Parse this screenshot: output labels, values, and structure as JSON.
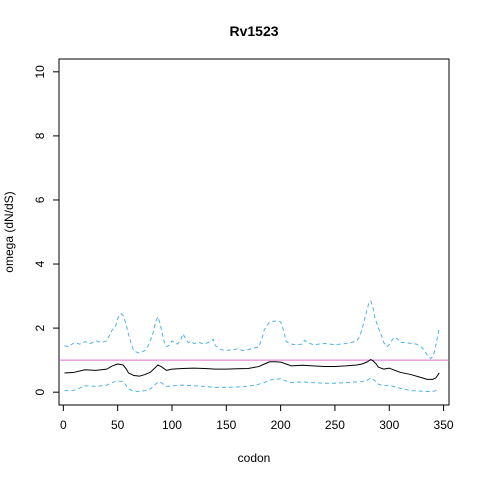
{
  "chart_data": {
    "type": "line",
    "title": "Rv1523",
    "xlabel": "codon",
    "ylabel": "omega (dN/dS)",
    "xlim": [
      -4,
      355
    ],
    "ylim": [
      -0.4,
      10.4
    ],
    "x_ticks": [
      0,
      50,
      100,
      150,
      200,
      250,
      300,
      350
    ],
    "y_ticks": [
      0,
      2,
      4,
      6,
      8,
      10
    ],
    "grid": false,
    "legend": "none",
    "reference_line": {
      "y": 1,
      "color": "#DA70D6"
    },
    "series": [
      {
        "role": "upper",
        "style": "dashed",
        "color": "#4FB3E8",
        "x": [
          1,
          5,
          10,
          15,
          20,
          25,
          30,
          35,
          40,
          45,
          48,
          50,
          53,
          55,
          58,
          60,
          63,
          65,
          70,
          75,
          78,
          80,
          83,
          85,
          87,
          89,
          91,
          93,
          95,
          98,
          100,
          103,
          105,
          108,
          110,
          113,
          115,
          118,
          120,
          125,
          130,
          135,
          138,
          140,
          145,
          150,
          155,
          160,
          165,
          170,
          175,
          180,
          183,
          185,
          188,
          190,
          195,
          200,
          203,
          205,
          210,
          215,
          220,
          222,
          225,
          230,
          235,
          240,
          245,
          250,
          255,
          260,
          265,
          270,
          273,
          276,
          279,
          281,
          283,
          285,
          287,
          290,
          293,
          295,
          298,
          300,
          303,
          305,
          308,
          310,
          315,
          320,
          325,
          330,
          333,
          335,
          338,
          340,
          342,
          344,
          346
        ],
        "values": [
          1.45,
          1.42,
          1.55,
          1.5,
          1.58,
          1.52,
          1.6,
          1.55,
          1.6,
          1.95,
          2.05,
          2.3,
          2.45,
          2.4,
          2.1,
          1.8,
          1.45,
          1.28,
          1.22,
          1.3,
          1.45,
          1.6,
          1.9,
          2.2,
          2.35,
          2.15,
          1.85,
          1.55,
          1.42,
          1.48,
          1.6,
          1.55,
          1.5,
          1.62,
          1.82,
          1.65,
          1.55,
          1.58,
          1.52,
          1.55,
          1.5,
          1.58,
          1.65,
          1.45,
          1.33,
          1.3,
          1.32,
          1.35,
          1.3,
          1.33,
          1.37,
          1.42,
          1.7,
          1.95,
          2.1,
          2.2,
          2.22,
          2.2,
          1.9,
          1.58,
          1.5,
          1.48,
          1.5,
          1.62,
          1.55,
          1.48,
          1.5,
          1.52,
          1.5,
          1.48,
          1.5,
          1.52,
          1.55,
          1.6,
          1.75,
          2.1,
          2.5,
          2.75,
          2.85,
          2.65,
          2.3,
          2.0,
          1.75,
          1.55,
          1.42,
          1.48,
          1.65,
          1.72,
          1.65,
          1.55,
          1.55,
          1.52,
          1.5,
          1.4,
          1.28,
          1.15,
          1.05,
          1.1,
          1.3,
          1.65,
          2.0
        ]
      },
      {
        "role": "estimate",
        "style": "solid",
        "color": "#000000",
        "x": [
          1,
          10,
          20,
          30,
          40,
          45,
          50,
          55,
          58,
          60,
          65,
          70,
          75,
          80,
          85,
          87,
          90,
          95,
          100,
          110,
          120,
          130,
          140,
          150,
          160,
          170,
          180,
          185,
          190,
          195,
          200,
          205,
          210,
          220,
          230,
          240,
          250,
          260,
          270,
          275,
          280,
          283,
          285,
          288,
          290,
          295,
          300,
          310,
          320,
          330,
          335,
          340,
          343,
          346
        ],
        "values": [
          0.6,
          0.62,
          0.7,
          0.68,
          0.72,
          0.82,
          0.88,
          0.85,
          0.72,
          0.6,
          0.52,
          0.5,
          0.55,
          0.62,
          0.78,
          0.85,
          0.8,
          0.68,
          0.72,
          0.74,
          0.75,
          0.74,
          0.72,
          0.72,
          0.73,
          0.74,
          0.8,
          0.88,
          0.95,
          0.95,
          0.94,
          0.88,
          0.82,
          0.84,
          0.82,
          0.8,
          0.8,
          0.82,
          0.85,
          0.88,
          0.95,
          1.02,
          0.98,
          0.88,
          0.78,
          0.72,
          0.75,
          0.62,
          0.55,
          0.45,
          0.4,
          0.4,
          0.45,
          0.6
        ]
      },
      {
        "role": "lower",
        "style": "dashed",
        "color": "#4FB3E8",
        "x": [
          1,
          10,
          20,
          30,
          40,
          45,
          50,
          55,
          58,
          60,
          65,
          70,
          75,
          80,
          85,
          87,
          90,
          95,
          100,
          110,
          120,
          130,
          140,
          150,
          160,
          170,
          180,
          185,
          190,
          195,
          200,
          205,
          210,
          220,
          230,
          240,
          250,
          260,
          270,
          275,
          280,
          283,
          285,
          288,
          290,
          295,
          300,
          310,
          320,
          330,
          335,
          340,
          343,
          346
        ],
        "values": [
          0.05,
          0.06,
          0.2,
          0.18,
          0.22,
          0.3,
          0.35,
          0.33,
          0.2,
          0.1,
          0.03,
          0.02,
          0.05,
          0.1,
          0.25,
          0.32,
          0.3,
          0.18,
          0.2,
          0.22,
          0.2,
          0.18,
          0.15,
          0.15,
          0.16,
          0.18,
          0.25,
          0.3,
          0.38,
          0.4,
          0.42,
          0.35,
          0.3,
          0.32,
          0.3,
          0.28,
          0.28,
          0.3,
          0.32,
          0.33,
          0.38,
          0.45,
          0.4,
          0.33,
          0.25,
          0.2,
          0.22,
          0.12,
          0.05,
          0.03,
          0.02,
          0.02,
          0.05,
          0.1
        ]
      }
    ]
  }
}
